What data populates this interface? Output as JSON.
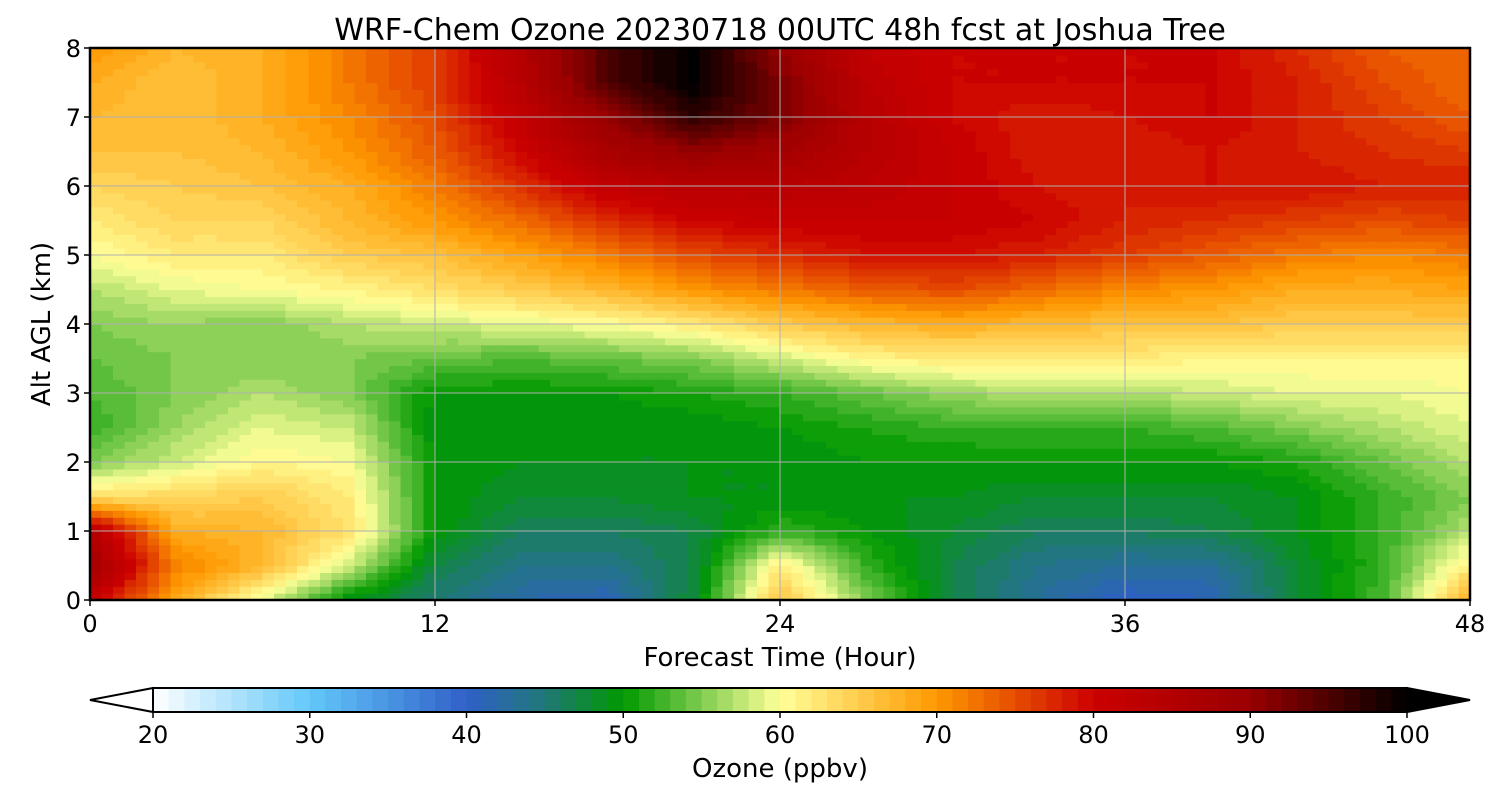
{
  "chart_data": {
    "type": "heatmap",
    "title": "WRF-Chem Ozone  20230718 00UTC 48h fcst at Joshua Tree",
    "xlabel": "Forecast Time (Hour)",
    "ylabel": "Alt AGL (km)",
    "xlim": [
      0,
      48
    ],
    "ylim": [
      0,
      8
    ],
    "xticks": [
      0,
      12,
      24,
      36,
      48
    ],
    "yticks": [
      0,
      1,
      2,
      3,
      4,
      5,
      6,
      7,
      8
    ],
    "grid": true,
    "x": [
      0,
      3,
      6,
      9,
      12,
      15,
      18,
      21,
      24,
      27,
      30,
      33,
      36,
      39,
      42,
      45,
      48
    ],
    "y": [
      0,
      0.5,
      1,
      1.5,
      2,
      2.5,
      3,
      3.5,
      4,
      4.5,
      5,
      5.5,
      6,
      6.5,
      7,
      7.5,
      8
    ],
    "z": [
      [
        82,
        68,
        59,
        49,
        45,
        42,
        41,
        48,
        66,
        55,
        47,
        43,
        40,
        41,
        48,
        53,
        68
      ],
      [
        88,
        72,
        67,
        58,
        47,
        44,
        44,
        47,
        62,
        52,
        47,
        44,
        43,
        43,
        48,
        52,
        62
      ],
      [
        85,
        68,
        67,
        63,
        50,
        46,
        46,
        47,
        52,
        50,
        48,
        46,
        46,
        47,
        49,
        52,
        57
      ],
      [
        63,
        64,
        65,
        62,
        50,
        48,
        48,
        49,
        49,
        49,
        49,
        48,
        48,
        48,
        49,
        52,
        55
      ],
      [
        55,
        58,
        61,
        60,
        50,
        49,
        49,
        49,
        49,
        50,
        50,
        50,
        50,
        50,
        51,
        54,
        57
      ],
      [
        52,
        56,
        59,
        58,
        49,
        49,
        49,
        49,
        50,
        51,
        52,
        52,
        52,
        53,
        55,
        57,
        59
      ],
      [
        53,
        55,
        57,
        55,
        50,
        50,
        50,
        51,
        52,
        54,
        56,
        57,
        57,
        58,
        59,
        59,
        60
      ],
      [
        54,
        55,
        55,
        55,
        54,
        53,
        54,
        55,
        58,
        61,
        62,
        62,
        62,
        61,
        61,
        61,
        61
      ],
      [
        55,
        56,
        55,
        57,
        58,
        59,
        60,
        62,
        65,
        67,
        68,
        67,
        66,
        66,
        65,
        65,
        65
      ],
      [
        57,
        59,
        60,
        61,
        63,
        65,
        67,
        70,
        72,
        74,
        75,
        73,
        71,
        70,
        68,
        68,
        69
      ],
      [
        60,
        62,
        62,
        65,
        66,
        69,
        72,
        75,
        77,
        79,
        79,
        78,
        76,
        74,
        72,
        71,
        72
      ],
      [
        62,
        64,
        64,
        67,
        70,
        73,
        77,
        80,
        81,
        81,
        81,
        80,
        78,
        77,
        76,
        75,
        76
      ],
      [
        64,
        65,
        66,
        68,
        72,
        77,
        82,
        84,
        84,
        83,
        81,
        79,
        78,
        79,
        79,
        78,
        78
      ],
      [
        66,
        66,
        67,
        70,
        74,
        80,
        87,
        90,
        88,
        84,
        81,
        78,
        78,
        79,
        78,
        77,
        76
      ],
      [
        67,
        66,
        68,
        71,
        75,
        82,
        90,
        97,
        92,
        84,
        80,
        78,
        79,
        80,
        78,
        76,
        74
      ],
      [
        68,
        66,
        68,
        72,
        76,
        84,
        95,
        100,
        92,
        83,
        80,
        80,
        80,
        80,
        78,
        75,
        73
      ],
      [
        70,
        67,
        68,
        72,
        76,
        85,
        95,
        100,
        90,
        82,
        80,
        80,
        80,
        80,
        77,
        74,
        73
      ]
    ],
    "colorbar": {
      "label": "Ozone  (ppbv)",
      "range": [
        20,
        100
      ],
      "extend": "both",
      "ticks": [
        20,
        30,
        40,
        50,
        60,
        70,
        80,
        90,
        100
      ],
      "colormap_stops": [
        {
          "value": 20,
          "color": "#ffffff"
        },
        {
          "value": 30,
          "color": "#63c8fa"
        },
        {
          "value": 40,
          "color": "#3060c8"
        },
        {
          "value": 45,
          "color": "#207878"
        },
        {
          "value": 50,
          "color": "#009900"
        },
        {
          "value": 55,
          "color": "#80cc50"
        },
        {
          "value": 60,
          "color": "#ffff99"
        },
        {
          "value": 70,
          "color": "#ff9900"
        },
        {
          "value": 80,
          "color": "#cc0000"
        },
        {
          "value": 90,
          "color": "#990000"
        },
        {
          "value": 100,
          "color": "#000000"
        }
      ]
    }
  }
}
